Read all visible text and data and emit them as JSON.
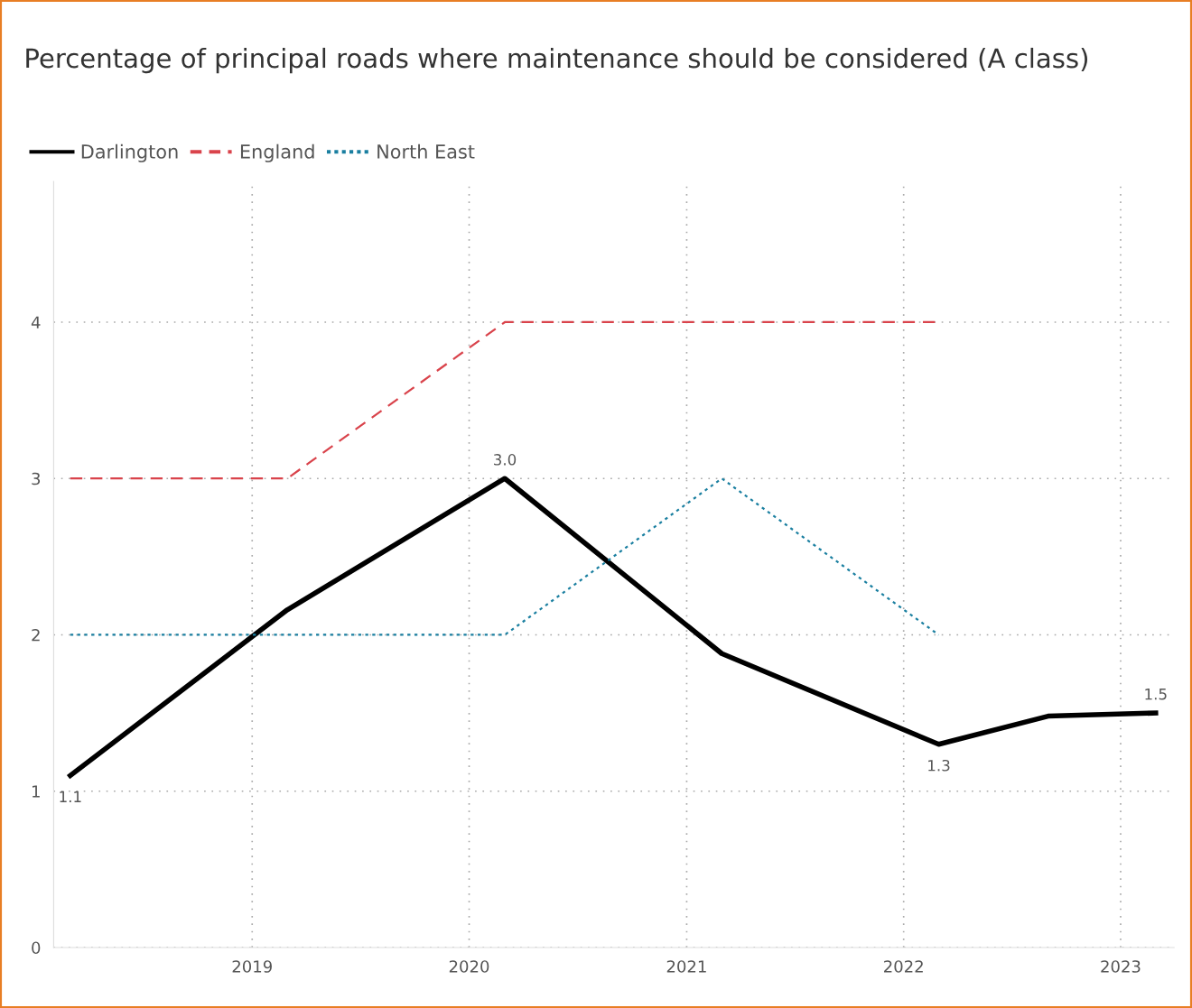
{
  "chart_data": {
    "type": "line",
    "title": "Percentage of principal roads where maintenance should be considered (A class)",
    "series": [
      {
        "name": "Darlington",
        "color": "#000000",
        "line_style": "solid",
        "x": [
          "2018-03",
          "2019-03",
          "2020-03",
          "2021-03",
          "2022-03",
          "2022-09",
          "2023-03"
        ],
        "values": [
          1.1,
          2.16,
          3.0,
          1.88,
          1.3,
          1.48,
          1.5
        ],
        "value_labels": [
          "1.1",
          null,
          "3.0",
          null,
          "1.3",
          null,
          "1.5"
        ]
      },
      {
        "name": "England",
        "color": "#d9434b",
        "line_style": "dashed",
        "x": [
          "2018-03",
          "2019-03",
          "2020-03",
          "2021-03",
          "2022-03"
        ],
        "values": [
          3,
          3,
          4,
          4,
          4
        ]
      },
      {
        "name": "North East",
        "color": "#1a7fa0",
        "line_style": "dotted",
        "x": [
          "2018-03",
          "2019-03",
          "2020-03",
          "2021-03",
          "2022-03"
        ],
        "values": [
          2,
          2,
          2,
          3,
          2
        ]
      }
    ],
    "xlim": [
      "2018-02",
      "2023-04"
    ],
    "xticks": [
      "2019",
      "2020",
      "2021",
      "2022",
      "2023"
    ],
    "ylim": [
      0,
      4.9
    ],
    "yticks": [
      0,
      1,
      2,
      3,
      4
    ],
    "grid": true,
    "legend": "top left",
    "marker": "none"
  }
}
